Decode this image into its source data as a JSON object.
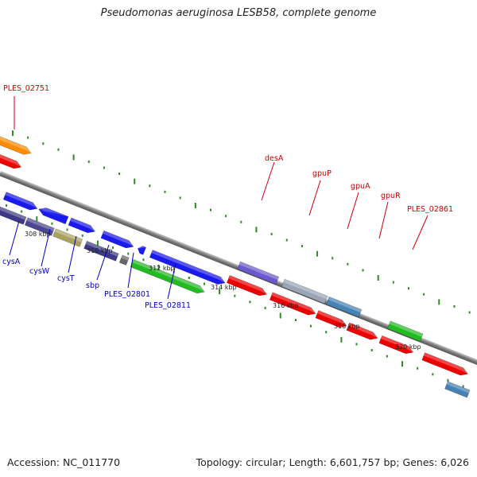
{
  "title": "Pseudomonas aeruginosa LESB58, complete genome",
  "footer": {
    "accession": "Accession: NC_011770",
    "stats": "Topology: circular; Length: 6,601,757 bp; Genes: 6,026"
  },
  "colors": {
    "backbone": "#8a8a8a",
    "tick": "#2e8b22",
    "label_red": "#cc0000",
    "label_blue": "#0000bb"
  },
  "scale_labels": [
    "308 kbp",
    "310 kbp",
    "312 kbp",
    "314 kbp",
    "316 kbp",
    "318 kbp",
    "320 kbp"
  ],
  "gene_labels": {
    "PLES_02751": "PLES_02751",
    "desA": "desA",
    "gpuP": "gpuP",
    "gpuA": "gpuA",
    "gpuR": "gpuR",
    "PLES_02861": "PLES_02861",
    "cysA": "cysA",
    "cysW": "cysW",
    "cysT": "cysT",
    "sbp": "sbp",
    "PLES_02801": "PLES_02801",
    "PLES_02811": "PLES_02811"
  }
}
